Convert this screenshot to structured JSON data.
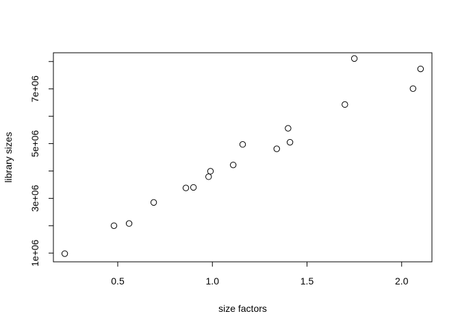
{
  "chart_data": {
    "type": "scatter",
    "title": "",
    "xlabel": "size factors",
    "ylabel": "library sizes",
    "xlim": [
      0.16,
      2.16
    ],
    "ylim": [
      680000,
      8320000
    ],
    "xticks": [
      0.5,
      1.0,
      1.5,
      2.0
    ],
    "xtick_labels": [
      "0.5",
      "1.0",
      "1.5",
      "2.0"
    ],
    "yticks": [
      1000000,
      2000000,
      3000000,
      4000000,
      5000000,
      6000000,
      7000000,
      8000000
    ],
    "ytick_labels": [
      "1e+06",
      "",
      "3e+06",
      "",
      "5e+06",
      "",
      "7e+06",
      ""
    ],
    "grid": false,
    "marker": "open-circle",
    "color": "#000000",
    "points": [
      {
        "x": 0.22,
        "y": 980000
      },
      {
        "x": 0.48,
        "y": 2000000
      },
      {
        "x": 0.56,
        "y": 2080000
      },
      {
        "x": 0.69,
        "y": 2850000
      },
      {
        "x": 0.86,
        "y": 3380000
      },
      {
        "x": 0.9,
        "y": 3400000
      },
      {
        "x": 0.98,
        "y": 3790000
      },
      {
        "x": 0.99,
        "y": 3990000
      },
      {
        "x": 1.11,
        "y": 4220000
      },
      {
        "x": 1.16,
        "y": 4970000
      },
      {
        "x": 1.34,
        "y": 4810000
      },
      {
        "x": 1.4,
        "y": 5560000
      },
      {
        "x": 1.41,
        "y": 5050000
      },
      {
        "x": 1.7,
        "y": 6430000
      },
      {
        "x": 1.75,
        "y": 8110000
      },
      {
        "x": 2.06,
        "y": 7010000
      },
      {
        "x": 2.1,
        "y": 7730000
      }
    ]
  }
}
